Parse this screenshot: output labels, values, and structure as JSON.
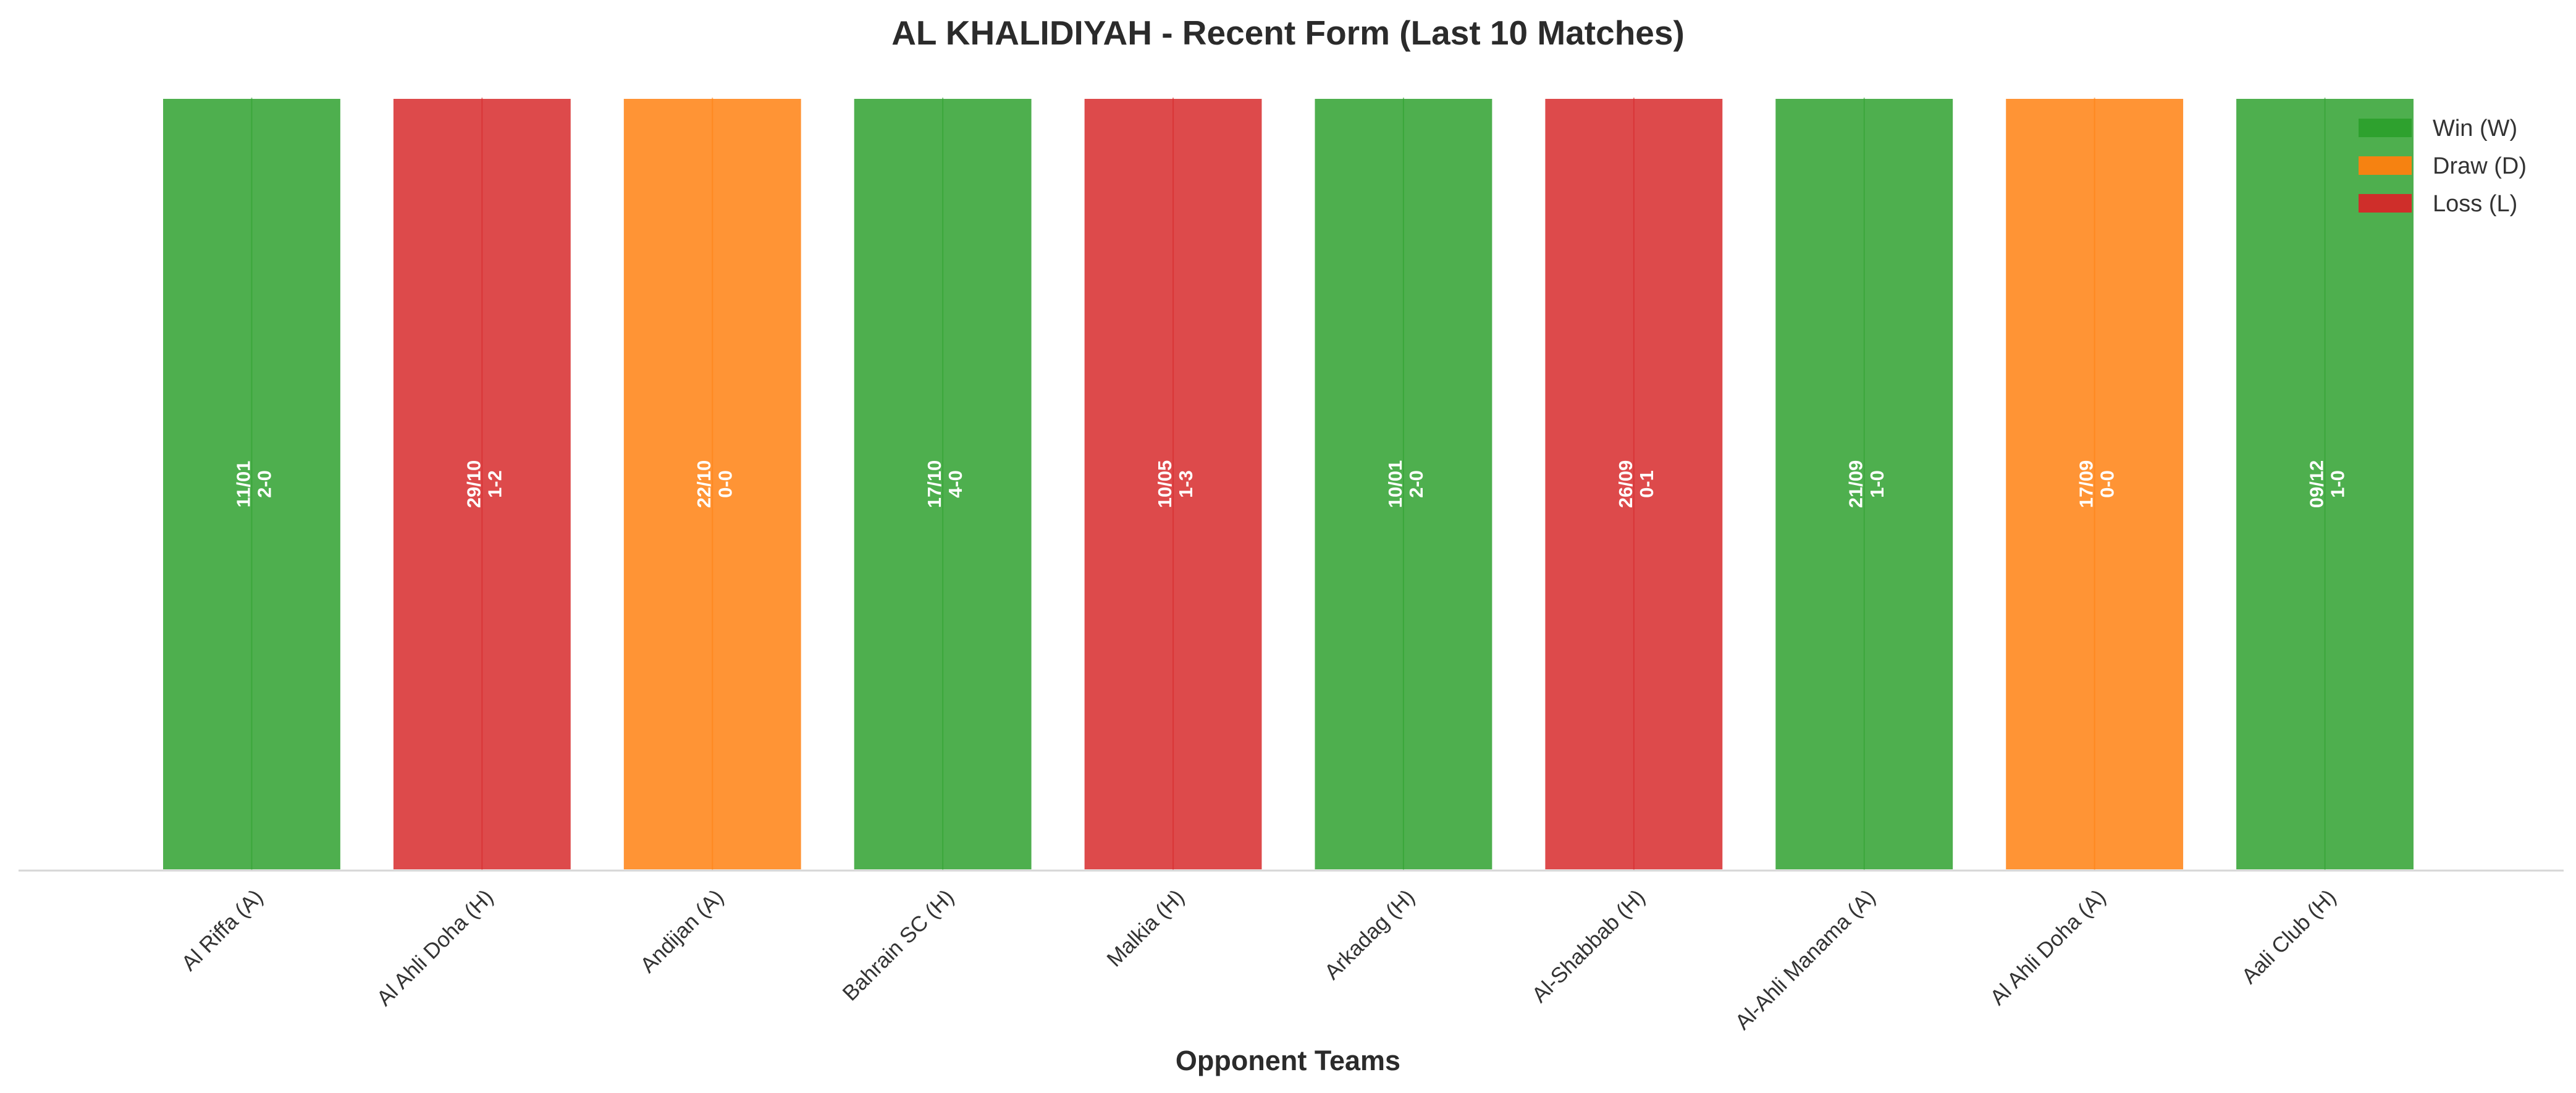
{
  "chart_data": {
    "type": "bar",
    "title": "AL KHALIDIYAH - Recent Form (Last 10 Matches)",
    "xlabel": "Opponent Teams",
    "ylabel": "",
    "categories": [
      "Al Riffa (A)",
      "Al Ahli Doha (H)",
      "Andijan (A)",
      "Bahrain SC (H)",
      "Malkia (H)",
      "Arkadag (H)",
      "Al-Shabbab (H)",
      "Al-Ahli Manama (A)",
      "Al Ahli Doha (A)",
      "Aali Club (H)"
    ],
    "values": [
      1,
      1,
      1,
      1,
      1,
      1,
      1,
      1,
      1,
      1
    ],
    "results": [
      "W",
      "L",
      "D",
      "W",
      "L",
      "W",
      "L",
      "W",
      "D",
      "W"
    ],
    "dates": [
      "11/01",
      "29/10",
      "22/10",
      "17/10",
      "10/05",
      "10/01",
      "26/09",
      "21/09",
      "17/09",
      "09/12"
    ],
    "scores": [
      "2-0",
      "1-2",
      "0-0",
      "4-0",
      "1-3",
      "2-0",
      "0-1",
      "1-0",
      "0-0",
      "1-0"
    ],
    "ylim": [
      0,
      1
    ],
    "grid": false,
    "legend": {
      "placement": "top-right",
      "entries": [
        {
          "key": "W",
          "label": "Win (W)",
          "color": "#2ca02c"
        },
        {
          "key": "D",
          "label": "Draw (D)",
          "color": "#ff7f0e"
        },
        {
          "key": "L",
          "label": "Loss (L)",
          "color": "#d62728"
        }
      ]
    },
    "colors": {
      "W": "#2ca02c",
      "D": "#ff7f0e",
      "L": "#d62728"
    }
  }
}
